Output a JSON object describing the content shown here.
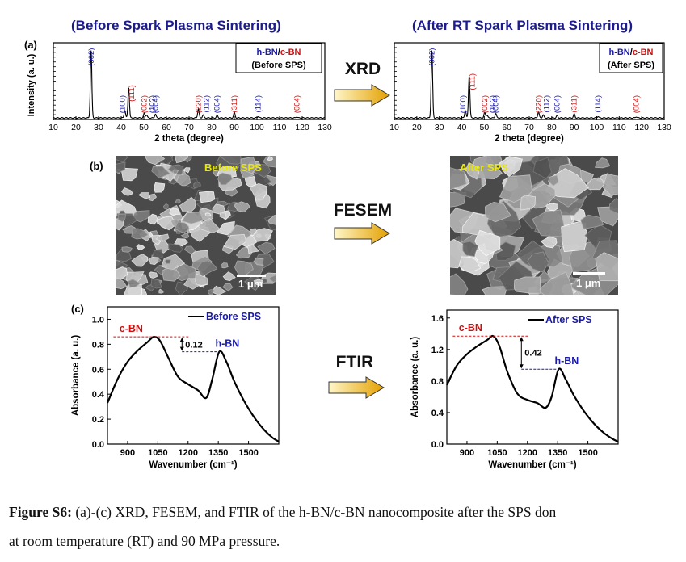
{
  "panel_labels": {
    "a": "(a)",
    "b": "(b)",
    "c": "(c)"
  },
  "titles": {
    "before": "(Before Spark Plasma Sintering)",
    "after": "(After RT Spark Plasma Sintering)"
  },
  "methods": {
    "xrd": "XRD",
    "fesem": "FESEM",
    "ftir": "FTIR"
  },
  "sem": {
    "before_label": "Before SPS",
    "after_label": "After SPS",
    "scale_before": "1 μm",
    "scale_after": "1 μm"
  },
  "caption": {
    "figure_label": "Figure S6:",
    "line1_rest": " (a)-(c) XRD, FESEM, and FTIR of the h-BN/c-BN nanocomposite after the SPS don",
    "line2": "at room temperature (RT) and 90 MPa pressure."
  },
  "colors": {
    "blue": "#1a1aa8",
    "red": "#d01010",
    "title": "#1c1c8c"
  },
  "chart_data": [
    {
      "id": "xrd-before",
      "type": "line",
      "xlabel": "2 theta (degree)",
      "ylabel": "Intensity (a. u.)",
      "xlim": [
        10,
        130
      ],
      "xticks": [
        10,
        20,
        30,
        40,
        50,
        60,
        70,
        80,
        90,
        100,
        110,
        120,
        130
      ],
      "legend": {
        "hbn": "h-BN",
        "sep": "/",
        "cbn": "c-BN",
        "state": "(Before SPS)"
      },
      "peaks": [
        {
          "x": 26.7,
          "h": 0.88,
          "label": "(002)",
          "phase": "h",
          "dx": 0
        },
        {
          "x": 41.6,
          "h": 0.1,
          "label": "(100)",
          "phase": "h",
          "dx": -3
        },
        {
          "x": 43.3,
          "h": 0.4,
          "label": "(111)",
          "phase": "c",
          "dx": 4
        },
        {
          "x": 50.2,
          "h": 0.06,
          "label": "(002)",
          "phase": "c",
          "dx": 0
        },
        {
          "x": 51.2,
          "h": 0.04,
          "label": "(102)",
          "phase": "h",
          "dx": 7
        },
        {
          "x": 55.1,
          "h": 0.05,
          "label": "(004)",
          "phase": "h",
          "dx": 0
        },
        {
          "x": 74.1,
          "h": 0.12,
          "label": "(220)",
          "phase": "c",
          "dx": 0
        },
        {
          "x": 76.2,
          "h": 0.04,
          "label": "(112)",
          "phase": "h",
          "dx": 4
        },
        {
          "x": 82.4,
          "h": 0.03,
          "label": "(004)",
          "phase": "h",
          "dx": 0
        },
        {
          "x": 90.0,
          "h": 0.07,
          "label": "(311)",
          "phase": "c",
          "dx": 0
        },
        {
          "x": 100.6,
          "h": 0.02,
          "label": "(114)",
          "phase": "h",
          "dx": 0
        },
        {
          "x": 117.6,
          "h": 0.015,
          "label": "(004)",
          "phase": "c",
          "dx": 0
        }
      ]
    },
    {
      "id": "xrd-after",
      "type": "line",
      "xlabel": "2 theta (degree)",
      "ylabel": "",
      "xlim": [
        10,
        130
      ],
      "xticks": [
        10,
        20,
        30,
        40,
        50,
        60,
        70,
        80,
        90,
        100,
        110,
        120,
        130
      ],
      "legend": {
        "hbn": "h-BN",
        "sep": "/",
        "cbn": "c-BN",
        "state": "(After SPS)"
      },
      "peaks": [
        {
          "x": 26.7,
          "h": 0.88,
          "label": "(002)",
          "phase": "h",
          "dx": 0
        },
        {
          "x": 41.6,
          "h": 0.1,
          "label": "(100)",
          "phase": "h",
          "dx": -3
        },
        {
          "x": 43.3,
          "h": 0.55,
          "label": "(111)",
          "phase": "c",
          "dx": 4
        },
        {
          "x": 50.2,
          "h": 0.07,
          "label": "(002)",
          "phase": "c",
          "dx": 0
        },
        {
          "x": 51.2,
          "h": 0.04,
          "label": "(102)",
          "phase": "h",
          "dx": 7
        },
        {
          "x": 55.1,
          "h": 0.06,
          "label": "(004)",
          "phase": "h",
          "dx": 0
        },
        {
          "x": 74.1,
          "h": 0.08,
          "label": "(220)",
          "phase": "c",
          "dx": 0
        },
        {
          "x": 76.2,
          "h": 0.04,
          "label": "(112)",
          "phase": "h",
          "dx": 4
        },
        {
          "x": 82.4,
          "h": 0.03,
          "label": "(004)",
          "phase": "h",
          "dx": 0
        },
        {
          "x": 90.0,
          "h": 0.05,
          "label": "(311)",
          "phase": "c",
          "dx": 0
        },
        {
          "x": 100.6,
          "h": 0.02,
          "label": "(114)",
          "phase": "h",
          "dx": 0
        },
        {
          "x": 117.6,
          "h": 0.015,
          "label": "(004)",
          "phase": "c",
          "dx": 0
        }
      ]
    },
    {
      "id": "ftir-before",
      "type": "line",
      "xlabel": "Wavenumber (cm⁻¹)",
      "ylabel": "Absorbance (a. u.)",
      "xlim": [
        800,
        1650
      ],
      "ylim": [
        0,
        1.1
      ],
      "xticks": [
        900,
        1050,
        1200,
        1350,
        1500
      ],
      "yticks": [
        0.0,
        0.2,
        0.4,
        0.6,
        0.8,
        1.0
      ],
      "ytick_labels": [
        "0.0",
        "0.2",
        "0.4",
        "0.6",
        "0.8",
        "1.0"
      ],
      "legend": "Before SPS",
      "x": [
        800,
        850,
        900,
        950,
        1000,
        1030,
        1060,
        1100,
        1150,
        1200,
        1250,
        1290,
        1320,
        1355,
        1390,
        1430,
        1480,
        1530,
        1580,
        1620,
        1650
      ],
      "y": [
        0.33,
        0.52,
        0.66,
        0.75,
        0.82,
        0.86,
        0.83,
        0.7,
        0.54,
        0.48,
        0.43,
        0.37,
        0.52,
        0.74,
        0.66,
        0.5,
        0.34,
        0.21,
        0.11,
        0.05,
        0.02
      ],
      "annotations": {
        "cbn": "c-BN",
        "hbn": "h-BN",
        "diff": "0.12",
        "cbn_y": 0.86,
        "hbn_y": 0.74,
        "cbn_x": 1030,
        "hbn_x": 1355
      }
    },
    {
      "id": "ftir-after",
      "type": "line",
      "xlabel": "Wavenumber (cm⁻¹)",
      "ylabel": "Absorbance (a. u.)",
      "xlim": [
        800,
        1650
      ],
      "ylim": [
        0,
        1.7
      ],
      "xticks": [
        900,
        1050,
        1200,
        1350,
        1500
      ],
      "yticks": [
        0.0,
        0.4,
        0.8,
        1.2,
        1.6
      ],
      "ytick_labels": [
        "0.0",
        "0.4",
        "0.8",
        "1.2",
        "1.6"
      ],
      "legend": "After SPS",
      "x": [
        800,
        850,
        900,
        950,
        1000,
        1030,
        1060,
        1100,
        1150,
        1200,
        1250,
        1290,
        1320,
        1355,
        1390,
        1430,
        1480,
        1530,
        1580,
        1620,
        1650
      ],
      "y": [
        0.75,
        1.0,
        1.14,
        1.24,
        1.32,
        1.37,
        1.25,
        0.92,
        0.64,
        0.56,
        0.52,
        0.46,
        0.6,
        0.95,
        0.82,
        0.62,
        0.42,
        0.26,
        0.14,
        0.07,
        0.03
      ],
      "annotations": {
        "cbn": "c-BN",
        "hbn": "h-BN",
        "diff": "0.42",
        "cbn_y": 1.37,
        "hbn_y": 0.95,
        "cbn_x": 1030,
        "hbn_x": 1355
      }
    }
  ]
}
